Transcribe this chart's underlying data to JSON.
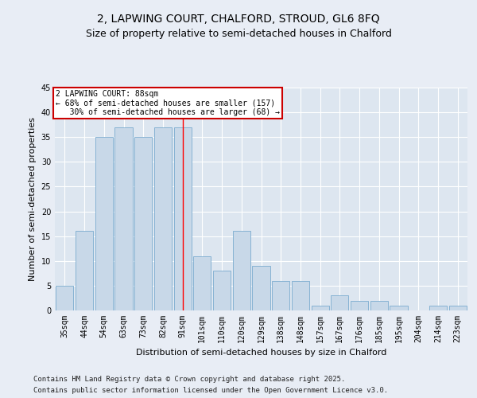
{
  "title_line1": "2, LAPWING COURT, CHALFORD, STROUD, GL6 8FQ",
  "title_line2": "Size of property relative to semi-detached houses in Chalford",
  "xlabel": "Distribution of semi-detached houses by size in Chalford",
  "ylabel": "Number of semi-detached properties",
  "categories": [
    "35sqm",
    "44sqm",
    "54sqm",
    "63sqm",
    "73sqm",
    "82sqm",
    "91sqm",
    "101sqm",
    "110sqm",
    "120sqm",
    "129sqm",
    "138sqm",
    "148sqm",
    "157sqm",
    "167sqm",
    "176sqm",
    "185sqm",
    "195sqm",
    "204sqm",
    "214sqm",
    "223sqm"
  ],
  "values": [
    5,
    16,
    35,
    37,
    35,
    37,
    37,
    11,
    8,
    16,
    9,
    6,
    6,
    1,
    3,
    2,
    2,
    1,
    0,
    1,
    1
  ],
  "bar_color": "#c8d8e8",
  "bar_edge_color": "#7aabcf",
  "background_color": "#dde6f0",
  "grid_color": "#ffffff",
  "fig_background": "#e8edf5",
  "red_line_index": 6,
  "annotation_text": "2 LAPWING COURT: 88sqm\n← 68% of semi-detached houses are smaller (157)\n   30% of semi-detached houses are larger (68) →",
  "annotation_box_color": "#ffffff",
  "annotation_box_edge": "#cc0000",
  "ylim": [
    0,
    45
  ],
  "yticks": [
    0,
    5,
    10,
    15,
    20,
    25,
    30,
    35,
    40,
    45
  ],
  "footer_line1": "Contains HM Land Registry data © Crown copyright and database right 2025.",
  "footer_line2": "Contains public sector information licensed under the Open Government Licence v3.0.",
  "title_fontsize": 10,
  "subtitle_fontsize": 9,
  "axis_label_fontsize": 8,
  "tick_fontsize": 7,
  "annotation_fontsize": 7,
  "footer_fontsize": 6.5
}
